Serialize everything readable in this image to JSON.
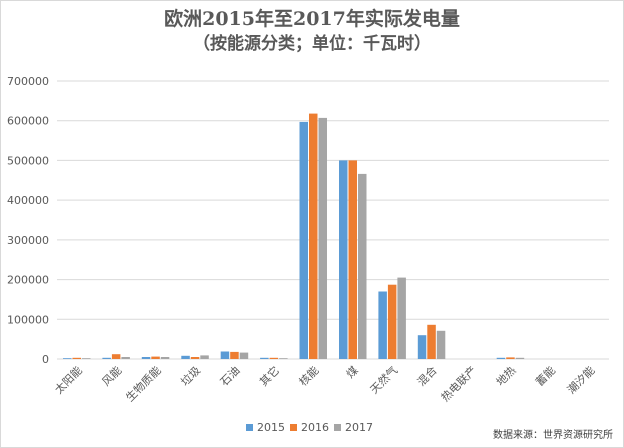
{
  "chart_data": {
    "type": "bar",
    "title": "欧洲2015年至2017年实际发电量",
    "subtitle": "（按能源分类；单位：千瓦时）",
    "categories": [
      "太阳能",
      "风能",
      "生物质能",
      "垃圾",
      "石油",
      "其它",
      "核能",
      "煤",
      "天然气",
      "混合",
      "热电联产",
      "地热",
      "蓄能",
      "潮汐能"
    ],
    "series": [
      {
        "name": "2015",
        "color": "#5b9bd5",
        "values": [
          2000,
          3000,
          5000,
          8000,
          19000,
          3000,
          597000,
          500000,
          170000,
          60000,
          0,
          3000,
          0,
          0
        ]
      },
      {
        "name": "2016",
        "color": "#ed7d31",
        "values": [
          3000,
          12000,
          6000,
          5000,
          18000,
          3000,
          618000,
          500000,
          187000,
          86000,
          0,
          4000,
          0,
          0
        ]
      },
      {
        "name": "2017",
        "color": "#a5a5a5",
        "values": [
          2000,
          5000,
          5000,
          9000,
          16000,
          2000,
          607000,
          466000,
          205000,
          71000,
          0,
          3000,
          0,
          0
        ]
      }
    ],
    "ylim": [
      0,
      700000
    ],
    "yticks": [
      "0",
      "100000",
      "200000",
      "300000",
      "400000",
      "500000",
      "600000",
      "700000"
    ],
    "grid": true,
    "legend": "bottom-center"
  },
  "source_note": "数据来源：世界资源研究所"
}
